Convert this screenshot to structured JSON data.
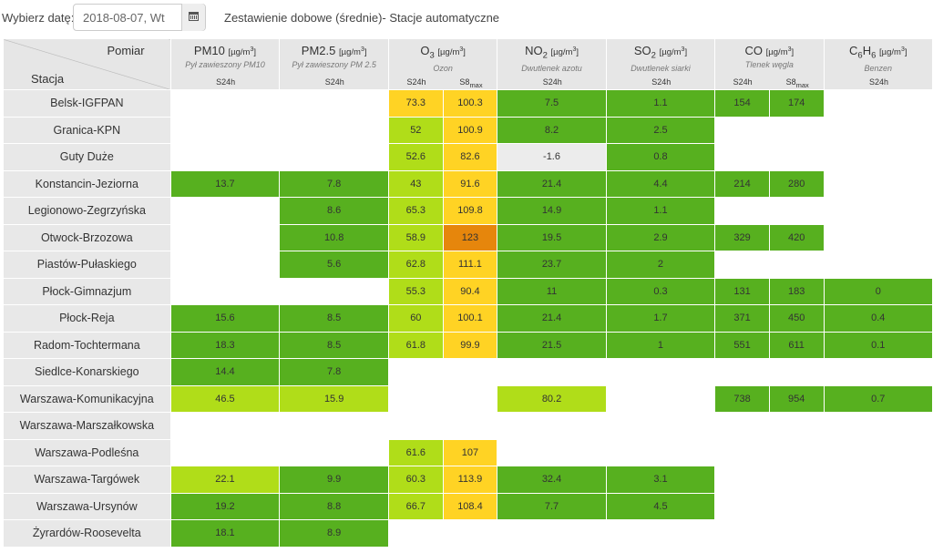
{
  "header": {
    "date_label": "Wybierz datę:",
    "date_value": "2018-08-07, Wt",
    "title": "Zestawienie dobowe (średnie)- Stacje automatyczne"
  },
  "table": {
    "corner_top": "Pomiar",
    "corner_bottom": "Stacja",
    "avg_label": "S24h",
    "max_label": "S8",
    "max_sub": "max",
    "pollutants": [
      {
        "key": "pm10",
        "name": "PM10",
        "sub": "",
        "unit": "[µg/m",
        "desc": "Pył zawieszony PM10",
        "cols": 1
      },
      {
        "key": "pm25",
        "name": "PM2.5",
        "sub": "",
        "unit": "[µg/m",
        "desc": "Pył zawieszony PM 2.5",
        "cols": 1
      },
      {
        "key": "o3",
        "name": "O",
        "sub": "3",
        "unit": "[µg/m",
        "desc": "Ozon",
        "cols": 2
      },
      {
        "key": "no2",
        "name": "NO",
        "sub": "2",
        "unit": "[µg/m",
        "desc": "Dwutlenek azotu",
        "cols": 1
      },
      {
        "key": "so2",
        "name": "SO",
        "sub": "2",
        "unit": "[µg/m",
        "desc": "Dwutlenek siarki",
        "cols": 1
      },
      {
        "key": "co",
        "name": "CO",
        "sub": "",
        "unit": "[µg/m",
        "desc": "Tlenek węgla",
        "cols": 2
      },
      {
        "key": "c6h6",
        "name": "C",
        "sub": "6",
        "name2": "H",
        "sub2": "6",
        "unit": "[µg/m",
        "desc": "Benzen",
        "cols": 1
      }
    ],
    "color_legend": {
      "dg": "#57b01f",
      "lg": "#b0dd19",
      "y": "#ffd324",
      "o": "#e6860c",
      "gy": "#ececec",
      "w": "#ffffff"
    },
    "rows": [
      {
        "station": "Belsk-IGFPAN",
        "cells": [
          [
            "",
            "w"
          ],
          [
            "",
            "w"
          ],
          [
            "73.3",
            "y"
          ],
          [
            "100.3",
            "y"
          ],
          [
            "7.5",
            "dg"
          ],
          [
            "1.1",
            "dg"
          ],
          [
            "154",
            "dg"
          ],
          [
            "174",
            "dg"
          ],
          [
            "",
            "w"
          ]
        ]
      },
      {
        "station": "Granica-KPN",
        "cells": [
          [
            "",
            "w"
          ],
          [
            "",
            "w"
          ],
          [
            "52",
            "lg"
          ],
          [
            "100.9",
            "y"
          ],
          [
            "8.2",
            "dg"
          ],
          [
            "2.5",
            "dg"
          ],
          [
            "",
            "w"
          ],
          [
            "",
            "w"
          ],
          [
            "",
            "w"
          ]
        ]
      },
      {
        "station": "Guty Duże",
        "cells": [
          [
            "",
            "w"
          ],
          [
            "",
            "w"
          ],
          [
            "52.6",
            "lg"
          ],
          [
            "82.6",
            "y"
          ],
          [
            "-1.6",
            "gy"
          ],
          [
            "0.8",
            "dg"
          ],
          [
            "",
            "w"
          ],
          [
            "",
            "w"
          ],
          [
            "",
            "w"
          ]
        ]
      },
      {
        "station": "Konstancin-Jeziorna",
        "cells": [
          [
            "13.7",
            "dg"
          ],
          [
            "7.8",
            "dg"
          ],
          [
            "43",
            "lg"
          ],
          [
            "91.6",
            "y"
          ],
          [
            "21.4",
            "dg"
          ],
          [
            "4.4",
            "dg"
          ],
          [
            "214",
            "dg"
          ],
          [
            "280",
            "dg"
          ],
          [
            "",
            "w"
          ]
        ]
      },
      {
        "station": "Legionowo-Zegrzyńska",
        "cells": [
          [
            "",
            "w"
          ],
          [
            "8.6",
            "dg"
          ],
          [
            "65.3",
            "lg"
          ],
          [
            "109.8",
            "y"
          ],
          [
            "14.9",
            "dg"
          ],
          [
            "1.1",
            "dg"
          ],
          [
            "",
            "w"
          ],
          [
            "",
            "w"
          ],
          [
            "",
            "w"
          ]
        ]
      },
      {
        "station": "Otwock-Brzozowa",
        "cells": [
          [
            "",
            "w"
          ],
          [
            "10.8",
            "dg"
          ],
          [
            "58.9",
            "lg"
          ],
          [
            "123",
            "o"
          ],
          [
            "19.5",
            "dg"
          ],
          [
            "2.9",
            "dg"
          ],
          [
            "329",
            "dg"
          ],
          [
            "420",
            "dg"
          ],
          [
            "",
            "w"
          ]
        ]
      },
      {
        "station": "Piastów-Pułaskiego",
        "cells": [
          [
            "",
            "w"
          ],
          [
            "5.6",
            "dg"
          ],
          [
            "62.8",
            "lg"
          ],
          [
            "111.1",
            "y"
          ],
          [
            "23.7",
            "dg"
          ],
          [
            "2",
            "dg"
          ],
          [
            "",
            "w"
          ],
          [
            "",
            "w"
          ],
          [
            "",
            "w"
          ]
        ]
      },
      {
        "station": "Płock-Gimnazjum",
        "cells": [
          [
            "",
            "w"
          ],
          [
            "",
            "w"
          ],
          [
            "55.3",
            "lg"
          ],
          [
            "90.4",
            "y"
          ],
          [
            "11",
            "dg"
          ],
          [
            "0.3",
            "dg"
          ],
          [
            "131",
            "dg"
          ],
          [
            "183",
            "dg"
          ],
          [
            "0",
            "dg"
          ]
        ]
      },
      {
        "station": "Płock-Reja",
        "cells": [
          [
            "15.6",
            "dg"
          ],
          [
            "8.5",
            "dg"
          ],
          [
            "60",
            "lg"
          ],
          [
            "100.1",
            "y"
          ],
          [
            "21.4",
            "dg"
          ],
          [
            "1.7",
            "dg"
          ],
          [
            "371",
            "dg"
          ],
          [
            "450",
            "dg"
          ],
          [
            "0.4",
            "dg"
          ]
        ]
      },
      {
        "station": "Radom-Tochtermana",
        "cells": [
          [
            "18.3",
            "dg"
          ],
          [
            "8.5",
            "dg"
          ],
          [
            "61.8",
            "lg"
          ],
          [
            "99.9",
            "y"
          ],
          [
            "21.5",
            "dg"
          ],
          [
            "1",
            "dg"
          ],
          [
            "551",
            "dg"
          ],
          [
            "611",
            "dg"
          ],
          [
            "0.1",
            "dg"
          ]
        ]
      },
      {
        "station": "Siedlce-Konarskiego",
        "cells": [
          [
            "14.4",
            "dg"
          ],
          [
            "7.8",
            "dg"
          ],
          [
            "",
            "w"
          ],
          [
            "",
            "w"
          ],
          [
            "",
            "w"
          ],
          [
            "",
            "w"
          ],
          [
            "",
            "w"
          ],
          [
            "",
            "w"
          ],
          [
            "",
            "w"
          ]
        ]
      },
      {
        "station": "Warszawa-Komunikacyjna",
        "cells": [
          [
            "46.5",
            "lg"
          ],
          [
            "15.9",
            "lg"
          ],
          [
            "",
            "w"
          ],
          [
            "",
            "w"
          ],
          [
            "80.2",
            "lg"
          ],
          [
            "",
            "w"
          ],
          [
            "738",
            "dg"
          ],
          [
            "954",
            "dg"
          ],
          [
            "0.7",
            "dg"
          ]
        ]
      },
      {
        "station": "Warszawa-Marszałkowska",
        "cells": [
          [
            "",
            "w"
          ],
          [
            "",
            "w"
          ],
          [
            "",
            "w"
          ],
          [
            "",
            "w"
          ],
          [
            "",
            "w"
          ],
          [
            "",
            "w"
          ],
          [
            "",
            "w"
          ],
          [
            "",
            "w"
          ],
          [
            "",
            "w"
          ]
        ]
      },
      {
        "station": "Warszawa-Podleśna",
        "cells": [
          [
            "",
            "w"
          ],
          [
            "",
            "w"
          ],
          [
            "61.6",
            "lg"
          ],
          [
            "107",
            "y"
          ],
          [
            "",
            "w"
          ],
          [
            "",
            "w"
          ],
          [
            "",
            "w"
          ],
          [
            "",
            "w"
          ],
          [
            "",
            "w"
          ]
        ]
      },
      {
        "station": "Warszawa-Targówek",
        "cells": [
          [
            "22.1",
            "lg"
          ],
          [
            "9.9",
            "dg"
          ],
          [
            "60.3",
            "lg"
          ],
          [
            "113.9",
            "y"
          ],
          [
            "32.4",
            "dg"
          ],
          [
            "3.1",
            "dg"
          ],
          [
            "",
            "w"
          ],
          [
            "",
            "w"
          ],
          [
            "",
            "w"
          ]
        ]
      },
      {
        "station": "Warszawa-Ursynów",
        "cells": [
          [
            "19.2",
            "dg"
          ],
          [
            "8.8",
            "dg"
          ],
          [
            "66.7",
            "lg"
          ],
          [
            "108.4",
            "y"
          ],
          [
            "7.7",
            "dg"
          ],
          [
            "4.5",
            "dg"
          ],
          [
            "",
            "w"
          ],
          [
            "",
            "w"
          ],
          [
            "",
            "w"
          ]
        ]
      },
      {
        "station": "Żyrardów-Roosevelta",
        "cells": [
          [
            "18.1",
            "dg"
          ],
          [
            "8.9",
            "dg"
          ],
          [
            "",
            "w"
          ],
          [
            "",
            "w"
          ],
          [
            "",
            "w"
          ],
          [
            "",
            "w"
          ],
          [
            "",
            "w"
          ],
          [
            "",
            "w"
          ],
          [
            "",
            "w"
          ]
        ]
      }
    ]
  }
}
